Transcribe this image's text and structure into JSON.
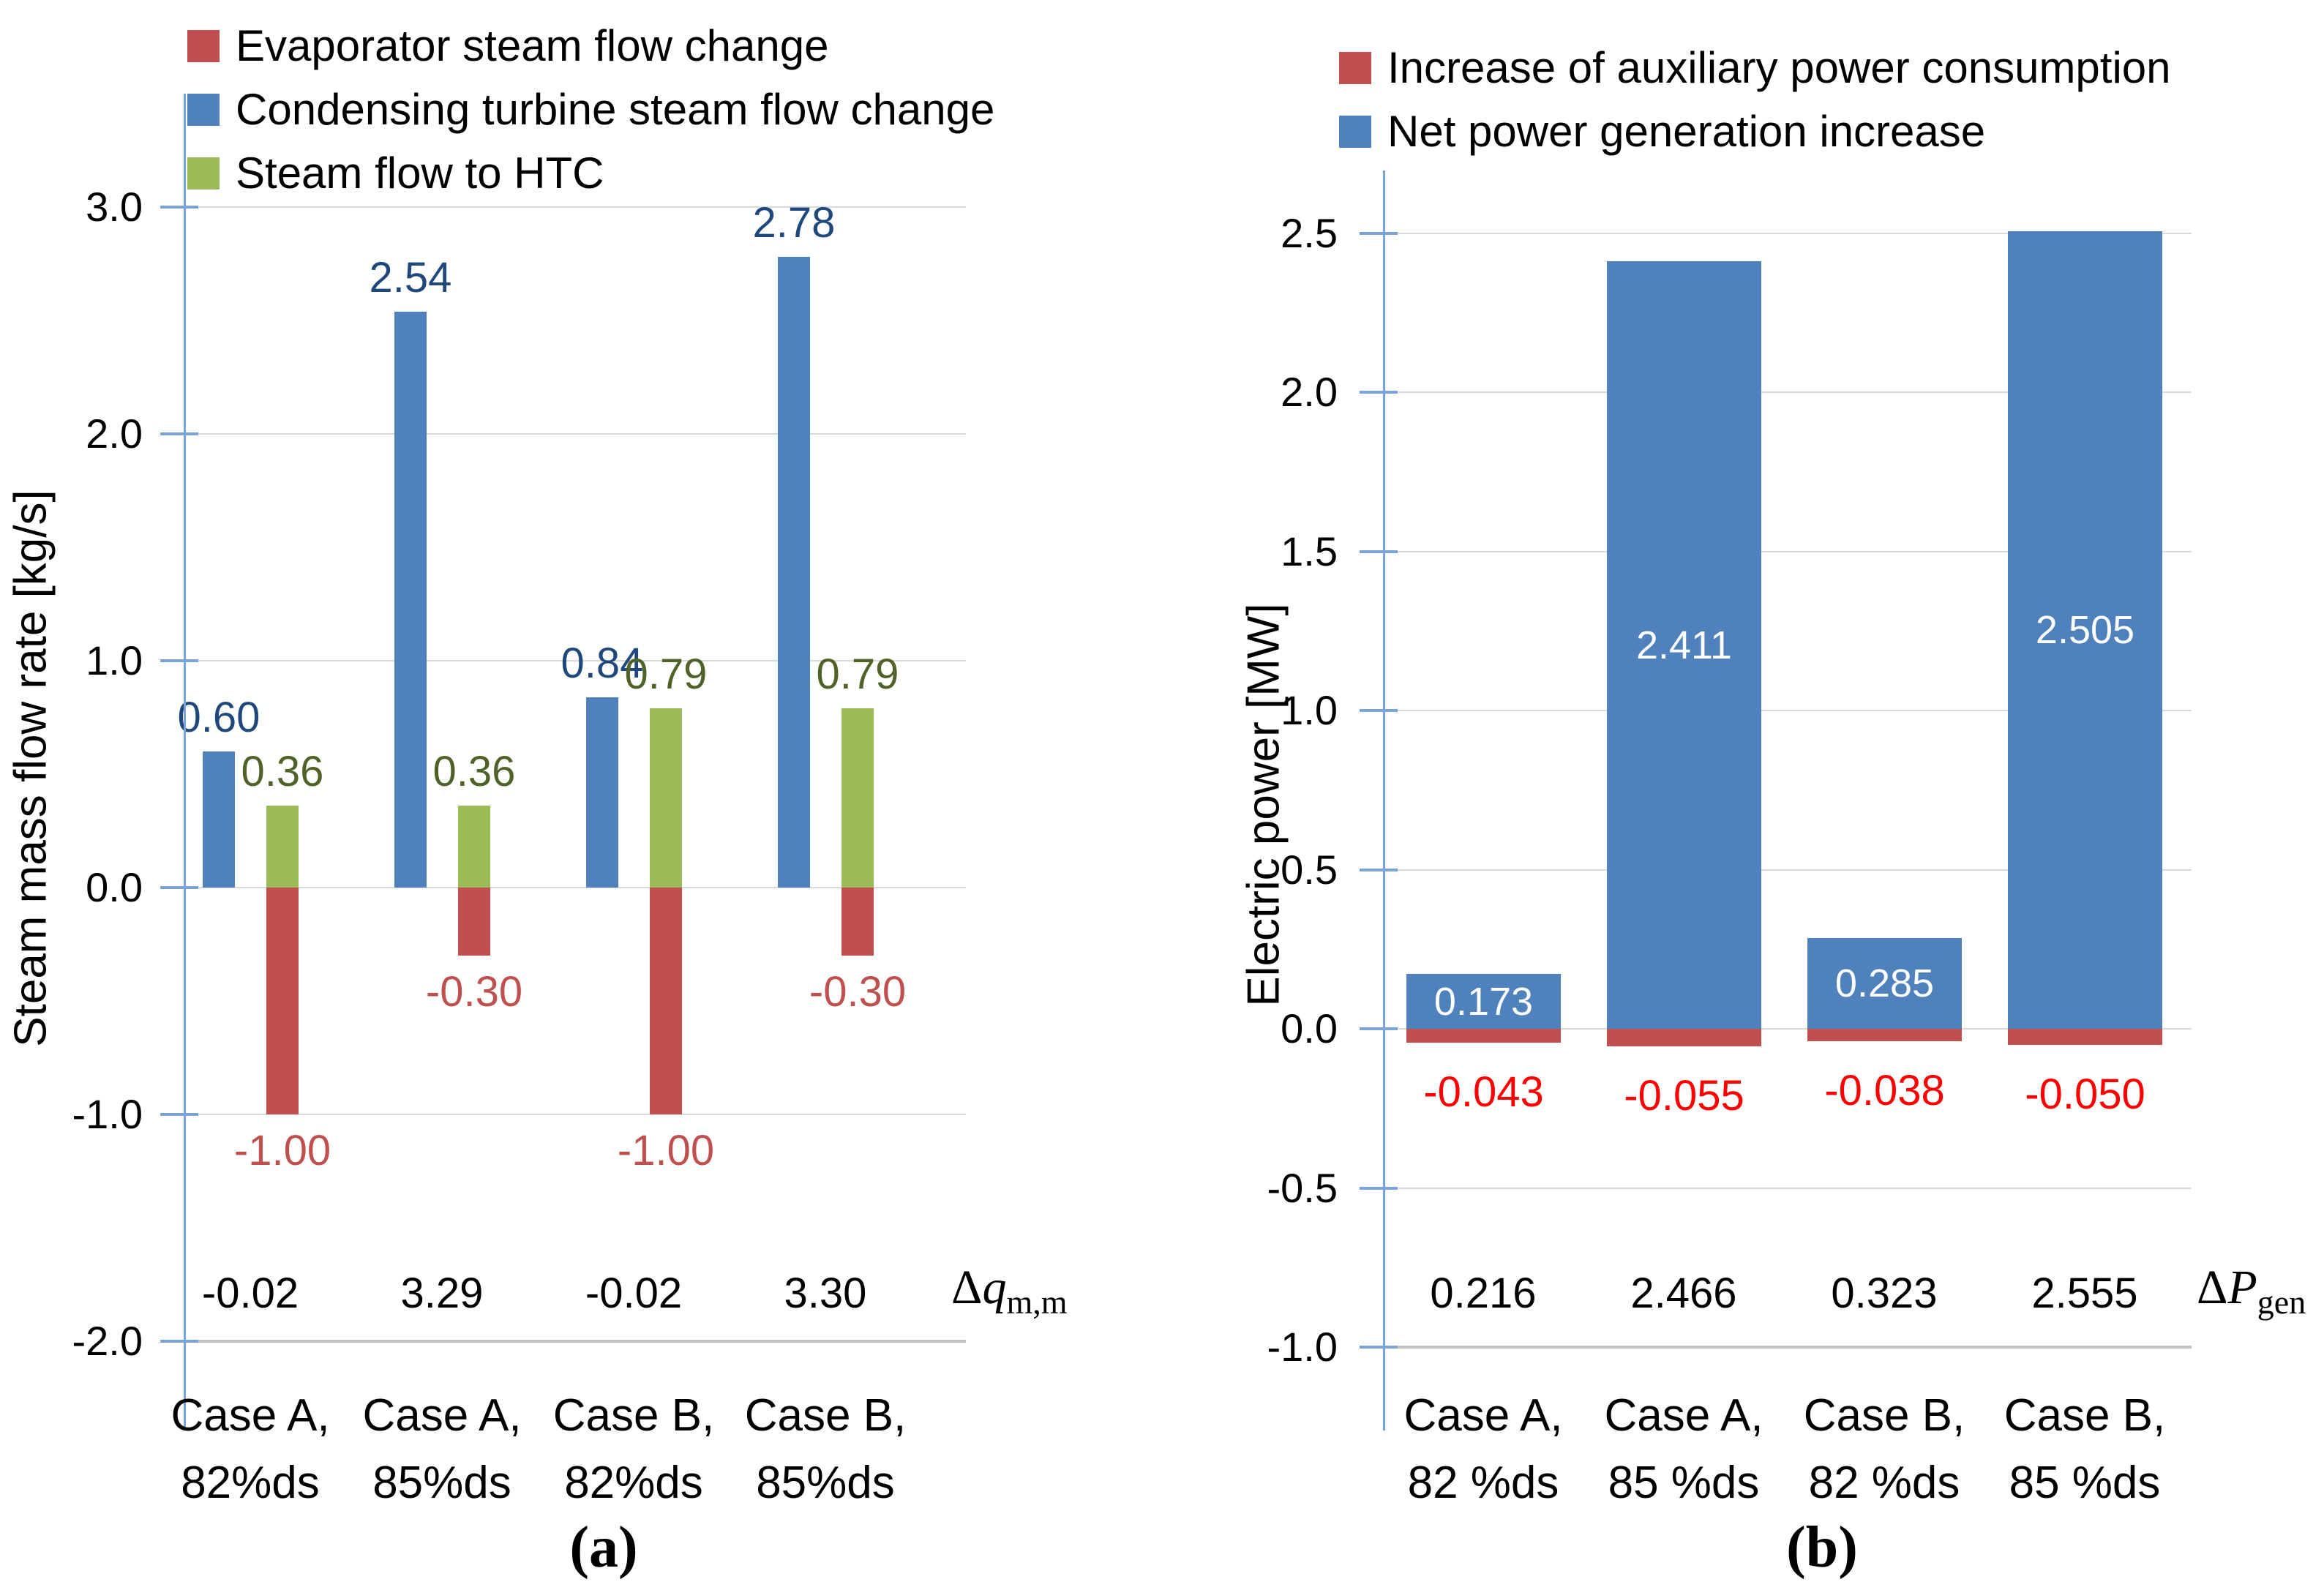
{
  "figure": {
    "background": "#FFFFFF",
    "palette": {
      "red_bar": "#C0504D",
      "blue_bar": "#4F81BD",
      "green_bar": "#9BBB59",
      "axis_line": "#7AA4D8",
      "gridline": "#D9D9D9",
      "baseline": "#C2C2C2",
      "blue_label": "#1F497D",
      "green_label": "#4F6228",
      "red_label_a": "#C0504D",
      "red_label_b": "#FF0000",
      "white_label": "#FFFFFF"
    }
  },
  "chart_data": [
    {
      "type": "bar",
      "panel": "a",
      "caption": "(a)",
      "ylabel": "Steam mass flow rate [kg/s]",
      "ylim": [
        -2.0,
        3.0
      ],
      "grid": true,
      "legend_position": "top-left",
      "yticks": [
        "3.0",
        "2.0",
        "1.0",
        "0.0",
        "-1.0",
        "-2.0"
      ],
      "ytick_values": [
        3,
        2,
        1,
        0,
        -1,
        -2
      ],
      "categories": [
        [
          "Case A,",
          "82%ds"
        ],
        [
          "Case A,",
          "85%ds"
        ],
        [
          "Case B,",
          "82%ds"
        ],
        [
          "Case B,",
          "85%ds"
        ]
      ],
      "series": [
        {
          "name": "Evaporator steam flow change",
          "color": "#C0504D",
          "label_color": "#C0504D",
          "values": [
            -1.0,
            -0.3,
            -1.0,
            -0.3
          ],
          "labels": [
            "-1.00",
            "-0.30",
            "-1.00",
            "-0.30"
          ]
        },
        {
          "name": "Condensing turbine steam flow change",
          "color": "#4F81BD",
          "label_color": "#1F497D",
          "values": [
            0.6,
            2.54,
            0.84,
            2.78
          ],
          "labels": [
            "0.60",
            "2.54",
            "0.84",
            "2.78"
          ]
        },
        {
          "name": "Steam flow to HTC",
          "color": "#9BBB59",
          "label_color": "#4F6228",
          "values": [
            0.36,
            0.36,
            0.79,
            0.79
          ],
          "labels": [
            "0.36",
            "0.36",
            "0.79",
            "0.79"
          ]
        }
      ],
      "sum_row": {
        "values": [
          "-0.02",
          "3.29",
          "-0.02",
          "3.30"
        ],
        "symbol_delta": "Δ",
        "symbol_main": "q",
        "symbol_sub": "m,m"
      }
    },
    {
      "type": "bar",
      "panel": "b",
      "caption": "(b)",
      "ylabel": "Electric power [MW]",
      "ylim": [
        -1.0,
        2.5
      ],
      "grid": true,
      "legend_position": "top-left",
      "yticks": [
        "2.5",
        "2.0",
        "1.5",
        "1.0",
        "0.5",
        "0.0",
        "-0.5",
        "-1.0"
      ],
      "ytick_values": [
        2.5,
        2.0,
        1.5,
        1.0,
        0.5,
        0.0,
        -0.5,
        -1.0
      ],
      "categories": [
        [
          "Case A,",
          "82 %ds"
        ],
        [
          "Case A,",
          "85 %ds"
        ],
        [
          "Case B,",
          "82 %ds"
        ],
        [
          "Case B,",
          "85 %ds"
        ]
      ],
      "series": [
        {
          "name": "Increase of auxiliary power consumption",
          "color": "#C0504D",
          "label_color": "#FF0000",
          "values": [
            -0.043,
            -0.055,
            -0.038,
            -0.05
          ],
          "labels": [
            "-0.043",
            "-0.055",
            "-0.038",
            "-0.050"
          ]
        },
        {
          "name": "Net power generation increase",
          "color": "#4F81BD",
          "label_color": "#FFFFFF",
          "values": [
            0.173,
            2.411,
            0.285,
            2.505
          ],
          "labels": [
            "0.173",
            "2.411",
            "0.285",
            "2.505"
          ]
        }
      ],
      "sum_row": {
        "values": [
          "0.216",
          "2.466",
          "0.323",
          "2.555"
        ],
        "symbol_delta": "Δ",
        "symbol_main": "P",
        "symbol_sub": "gen"
      }
    }
  ]
}
